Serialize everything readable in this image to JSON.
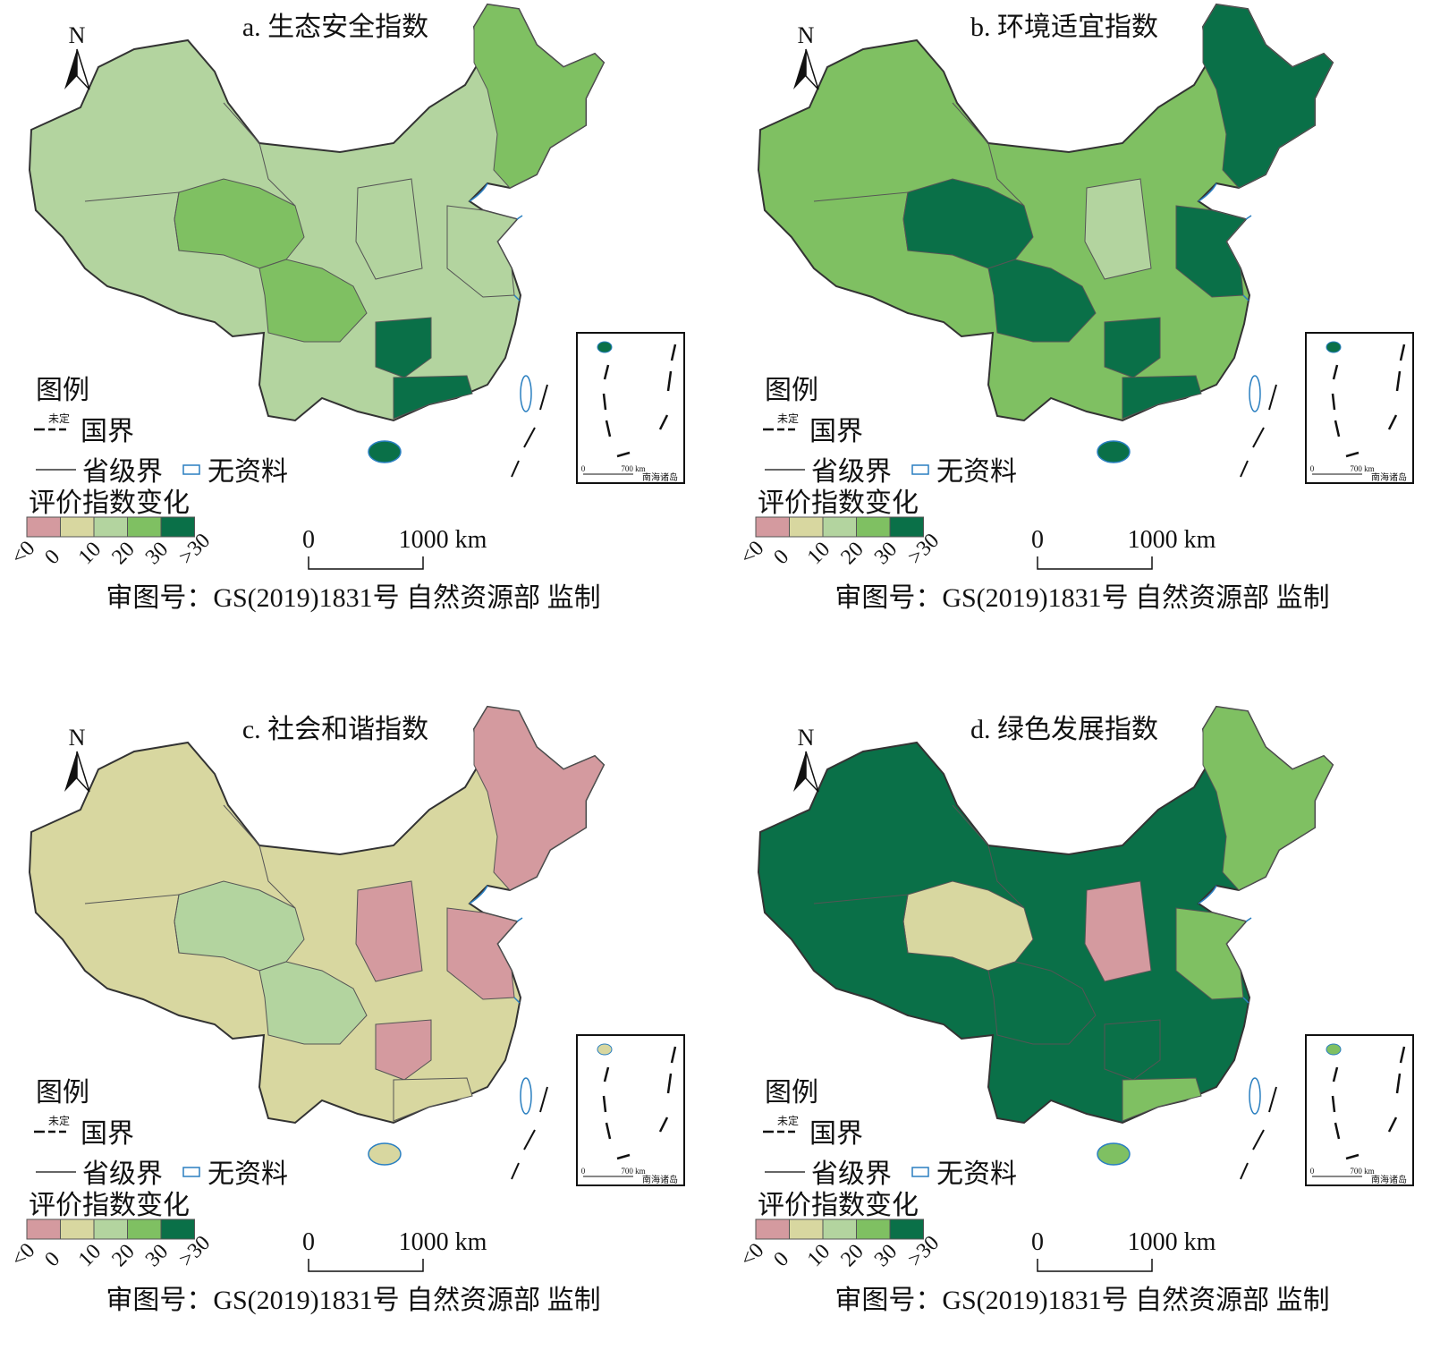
{
  "panels": [
    {
      "title": "a. 生态安全指数",
      "north": "N",
      "legend": {
        "title": "图例",
        "undetermined": "未定",
        "border": "国界",
        "province": "省级界",
        "nodata": "无资料",
        "scale_title": "评价指数变化",
        "class_labels": [
          "<0",
          "0",
          "10",
          "20",
          "30",
          ">30"
        ],
        "class_colors": [
          "#d49a9f",
          "#d8d7a0",
          "#b3d49f",
          "#7fc062",
          "#0a7048"
        ]
      },
      "scalebar": [
        "0",
        "1000 km"
      ],
      "inset": {
        "zero": "0",
        "scale": "700 km",
        "name": "南海诸岛"
      },
      "approval": "审图号：GS(2019)1831号  自然资源部 监制",
      "map_colors": {
        "base": "#b3d49f",
        "northeast": "#7fc062",
        "qinghai": "#7fc062",
        "sichuan": "#7fc062",
        "north": "#b3d49f",
        "east": "#b3d49f",
        "central": "#0a7048",
        "south": "#0a7048"
      }
    },
    {
      "title": "b. 环境适宜指数",
      "north": "N",
      "legend": {
        "title": "图例",
        "undetermined": "未定",
        "border": "国界",
        "province": "省级界",
        "nodata": "无资料",
        "scale_title": "评价指数变化",
        "class_labels": [
          "<0",
          "0",
          "10",
          "20",
          "30",
          ">30"
        ],
        "class_colors": [
          "#d49a9f",
          "#d8d7a0",
          "#b3d49f",
          "#7fc062",
          "#0a7048"
        ]
      },
      "scalebar": [
        "0",
        "1000 km"
      ],
      "inset": {
        "zero": "0",
        "scale": "700 km",
        "name": "南海诸岛"
      },
      "approval": "审图号：GS(2019)1831号  自然资源部 监制",
      "map_colors": {
        "base": "#7fc062",
        "northeast": "#0a7048",
        "qinghai": "#0a7048",
        "sichuan": "#0a7048",
        "north": "#b3d49f",
        "east": "#0a7048",
        "central": "#0a7048",
        "south": "#0a7048"
      }
    },
    {
      "title": "c. 社会和谐指数",
      "north": "N",
      "legend": {
        "title": "图例",
        "undetermined": "未定",
        "border": "国界",
        "province": "省级界",
        "nodata": "无资料",
        "scale_title": "评价指数变化",
        "class_labels": [
          "<0",
          "0",
          "10",
          "20",
          "30",
          ">30"
        ],
        "class_colors": [
          "#d49a9f",
          "#d8d7a0",
          "#b3d49f",
          "#7fc062",
          "#0a7048"
        ]
      },
      "scalebar": [
        "0",
        "1000 km"
      ],
      "inset": {
        "zero": "0",
        "scale": "700 km",
        "name": "南海诸岛"
      },
      "approval": "审图号：GS(2019)1831号  自然资源部 监制",
      "map_colors": {
        "base": "#d8d7a0",
        "northeast": "#d49a9f",
        "qinghai": "#b3d49f",
        "sichuan": "#b3d49f",
        "north": "#d49a9f",
        "east": "#d49a9f",
        "central": "#d49a9f",
        "south": "#d8d7a0"
      }
    },
    {
      "title": "d. 绿色发展指数",
      "north": "N",
      "legend": {
        "title": "图例",
        "undetermined": "未定",
        "border": "国界",
        "province": "省级界",
        "nodata": "无资料",
        "scale_title": "评价指数变化",
        "class_labels": [
          "<0",
          "0",
          "10",
          "20",
          "30",
          ">30"
        ],
        "class_colors": [
          "#d49a9f",
          "#d8d7a0",
          "#b3d49f",
          "#7fc062",
          "#0a7048"
        ]
      },
      "scalebar": [
        "0",
        "1000 km"
      ],
      "inset": {
        "zero": "0",
        "scale": "700 km",
        "name": "南海诸岛"
      },
      "approval": "审图号：GS(2019)1831号  自然资源部 监制",
      "map_colors": {
        "base": "#0a7048",
        "northeast": "#7fc062",
        "qinghai": "#d8d7a0",
        "sichuan": "#0a7048",
        "north": "#d49a9f",
        "east": "#7fc062",
        "central": "#0a7048",
        "south": "#7fc062"
      }
    }
  ]
}
